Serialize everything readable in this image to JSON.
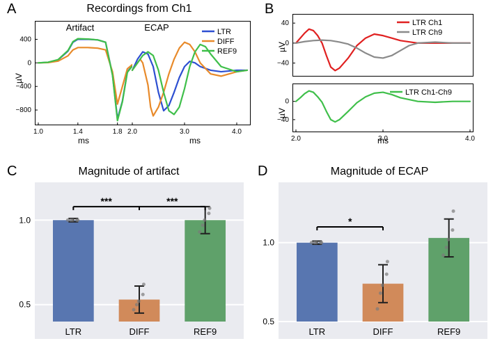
{
  "panelA": {
    "letter": "A",
    "title": "Recordings from Ch1",
    "artifact": {
      "subtitle": "Artifact",
      "y_label": "µV",
      "x_label": "ms",
      "xlim": [
        1.0,
        1.95
      ],
      "ylim": [
        -1000,
        500
      ],
      "ytick_positions": [
        -800,
        -400,
        0,
        400
      ],
      "ytick_labels": [
        "−800",
        "−400",
        "0",
        "400"
      ],
      "xtick_positions": [
        1.0,
        1.4,
        1.8
      ],
      "xtick_labels": [
        "1.0",
        "1.4",
        "1.8"
      ],
      "series": {
        "LTR": {
          "color": "#2d4fd1",
          "x": [
            1.0,
            1.1,
            1.2,
            1.3,
            1.35,
            1.4,
            1.5,
            1.6,
            1.68,
            1.75,
            1.8,
            1.85,
            1.9,
            1.95
          ],
          "y": [
            0,
            10,
            50,
            200,
            350,
            400,
            400,
            390,
            350,
            -200,
            -950,
            -650,
            -150,
            -50
          ]
        },
        "DIFF": {
          "color": "#e88a2a",
          "x": [
            1.0,
            1.1,
            1.2,
            1.3,
            1.35,
            1.4,
            1.5,
            1.6,
            1.68,
            1.75,
            1.8,
            1.85,
            1.9,
            1.95
          ],
          "y": [
            0,
            5,
            30,
            120,
            220,
            260,
            260,
            250,
            220,
            -150,
            -700,
            -400,
            -100,
            -30
          ]
        },
        "REF9": {
          "color": "#3fbf4a",
          "x": [
            1.0,
            1.1,
            1.2,
            1.3,
            1.35,
            1.4,
            1.5,
            1.6,
            1.68,
            1.75,
            1.8,
            1.85,
            1.9,
            1.95
          ],
          "y": [
            0,
            10,
            55,
            210,
            360,
            410,
            405,
            390,
            350,
            -210,
            -980,
            -660,
            -160,
            -55
          ]
        }
      }
    },
    "ecap": {
      "subtitle": "ECAP",
      "x_label": "ms",
      "xlim": [
        2.0,
        4.2
      ],
      "ylim": [
        -70,
        50
      ],
      "xtick_positions": [
        2.0,
        3.0,
        4.0
      ],
      "xtick_labels": [
        "2.0",
        "3.0",
        "4.0"
      ],
      "legend": [
        {
          "label": "LTR",
          "color": "#2d4fd1"
        },
        {
          "label": "DIFF",
          "color": "#e88a2a"
        },
        {
          "label": "REF9",
          "color": "#3fbf4a"
        }
      ],
      "series": {
        "LTR": {
          "color": "#2d4fd1",
          "x": [
            2.0,
            2.1,
            2.2,
            2.3,
            2.4,
            2.5,
            2.6,
            2.7,
            2.8,
            2.9,
            3.0,
            3.1,
            3.2,
            3.3,
            3.5,
            3.7,
            4.0,
            4.2
          ],
          "y": [
            0,
            15,
            25,
            22,
            5,
            -30,
            -55,
            -48,
            -30,
            -10,
            5,
            12,
            10,
            5,
            0,
            -2,
            0,
            0
          ]
        },
        "DIFF": {
          "color": "#e88a2a",
          "x": [
            2.0,
            2.1,
            2.15,
            2.2,
            2.3,
            2.35,
            2.4,
            2.5,
            2.6,
            2.7,
            2.8,
            2.9,
            3.0,
            3.1,
            3.2,
            3.3,
            3.5,
            3.7,
            4.0,
            4.2
          ],
          "y": [
            0,
            10,
            15,
            10,
            -20,
            -50,
            -62,
            -50,
            -30,
            -5,
            15,
            30,
            38,
            35,
            25,
            10,
            -5,
            -8,
            -2,
            0
          ]
        },
        "REF9": {
          "color": "#3fbf4a",
          "x": [
            2.0,
            2.1,
            2.2,
            2.3,
            2.4,
            2.5,
            2.6,
            2.7,
            2.8,
            2.9,
            3.0,
            3.1,
            3.2,
            3.3,
            3.4,
            3.5,
            3.7,
            4.0,
            4.2
          ],
          "y": [
            0,
            10,
            20,
            25,
            20,
            0,
            -30,
            -55,
            -60,
            -50,
            -25,
            5,
            25,
            35,
            32,
            22,
            5,
            -2,
            0
          ]
        }
      }
    }
  },
  "panelB": {
    "letter": "B",
    "top": {
      "y_label": "µV",
      "x_label": "",
      "xlim": [
        2.0,
        4.0
      ],
      "ylim": [
        -60,
        50
      ],
      "ytick_positions": [
        -40,
        0,
        40
      ],
      "ytick_labels": [
        "−40",
        "0",
        "40"
      ],
      "legend": [
        {
          "label": "LTR Ch1",
          "color": "#e02020"
        },
        {
          "label": "LTR Ch9",
          "color": "#8a8a8a"
        }
      ],
      "series": {
        "Ch1": {
          "color": "#e02020",
          "x": [
            2.0,
            2.05,
            2.1,
            2.15,
            2.2,
            2.25,
            2.3,
            2.35,
            2.4,
            2.45,
            2.5,
            2.6,
            2.7,
            2.8,
            2.9,
            3.0,
            3.1,
            3.2,
            3.4,
            3.6,
            3.8,
            4.0
          ],
          "y": [
            0,
            10,
            20,
            28,
            25,
            15,
            0,
            -25,
            -48,
            -55,
            -50,
            -30,
            -5,
            10,
            18,
            15,
            10,
            5,
            0,
            0,
            0,
            0
          ]
        },
        "Ch9": {
          "color": "#8a8a8a",
          "x": [
            2.0,
            2.1,
            2.2,
            2.3,
            2.4,
            2.5,
            2.6,
            2.7,
            2.8,
            2.9,
            3.0,
            3.1,
            3.2,
            3.3,
            3.4,
            3.6,
            3.8,
            4.0
          ],
          "y": [
            0,
            3,
            5,
            6,
            5,
            2,
            -2,
            -10,
            -20,
            -28,
            -30,
            -25,
            -15,
            -5,
            0,
            2,
            0,
            0
          ]
        }
      }
    },
    "bottom": {
      "y_label": "µV",
      "x_label": "ms",
      "xlim": [
        2.0,
        4.0
      ],
      "ylim": [
        -60,
        30
      ],
      "ytick_positions": [
        -40,
        0
      ],
      "ytick_labels": [
        "−40",
        "0"
      ],
      "xtick_positions": [
        2.0,
        3.0,
        4.0
      ],
      "xtick_labels": [
        "2.0",
        "3.0",
        "4.0"
      ],
      "legend": [
        {
          "label": "LTR Ch1-Ch9",
          "color": "#3fbf4a"
        }
      ],
      "series": {
        "diff": {
          "color": "#3fbf4a",
          "x": [
            2.0,
            2.05,
            2.1,
            2.15,
            2.2,
            2.25,
            2.3,
            2.35,
            2.4,
            2.45,
            2.5,
            2.6,
            2.7,
            2.8,
            2.9,
            3.0,
            3.1,
            3.2,
            3.4,
            3.6,
            3.8,
            4.0
          ],
          "y": [
            0,
            8,
            17,
            23,
            20,
            10,
            -2,
            -22,
            -40,
            -45,
            -40,
            -22,
            -3,
            10,
            18,
            20,
            15,
            8,
            0,
            -2,
            0,
            0
          ]
        }
      }
    }
  },
  "panelC": {
    "letter": "C",
    "title": "Magnitude of artifact",
    "ylim": [
      0.4,
      1.1
    ],
    "ytick_positions": [
      0.5,
      1.0
    ],
    "ytick_labels": [
      "0.5",
      "1.0"
    ],
    "categories": [
      "LTR",
      "DIFF",
      "REF9"
    ],
    "bars": [
      {
        "label": "LTR",
        "value": 1.0,
        "err": 0.01,
        "color": "#5876b0",
        "points": [
          1.0,
          1.0,
          1.0,
          1.0,
          1.0
        ]
      },
      {
        "label": "DIFF",
        "value": 0.53,
        "err": 0.08,
        "color": "#d18a5a",
        "points": [
          0.47,
          0.5,
          0.52,
          0.56,
          0.62
        ]
      },
      {
        "label": "REF9",
        "value": 1.0,
        "err": 0.08,
        "color": "#5fa16a",
        "points": [
          0.93,
          0.97,
          1.0,
          1.04,
          1.07
        ]
      }
    ],
    "sig": [
      {
        "from": 0,
        "to": 1,
        "label": "***",
        "y": 1.08
      },
      {
        "from": 1,
        "to": 2,
        "label": "***",
        "y": 1.08
      }
    ]
  },
  "panelD": {
    "letter": "D",
    "title": "Magnitude of ECAP",
    "ylim": [
      0.5,
      1.25
    ],
    "ytick_positions": [
      0.5,
      1.0
    ],
    "ytick_labels": [
      "0.5",
      "1.0"
    ],
    "categories": [
      "LTR",
      "DIFF",
      "REF9"
    ],
    "bars": [
      {
        "label": "LTR",
        "value": 1.0,
        "err": 0.01,
        "color": "#5876b0",
        "points": [
          1.0,
          1.0,
          1.0,
          1.0,
          1.0
        ]
      },
      {
        "label": "DIFF",
        "value": 0.74,
        "err": 0.12,
        "color": "#d18a5a",
        "points": [
          0.58,
          0.68,
          0.73,
          0.8,
          0.88
        ]
      },
      {
        "label": "REF9",
        "value": 1.03,
        "err": 0.12,
        "color": "#5fa16a",
        "points": [
          0.92,
          0.97,
          1.02,
          1.08,
          1.2
        ]
      }
    ],
    "sig": [
      {
        "from": 0,
        "to": 1,
        "label": "*",
        "y": 1.1
      }
    ]
  },
  "style": {
    "bar_width": 0.62,
    "title_fontsize": 16,
    "label_fontsize": 12,
    "tick_fontsize": 10,
    "line_width": 2.2,
    "sig_line_color": "#000000",
    "err_color": "#202020",
    "point_color": "#7a7a7a",
    "grid_bg": "#eaebf0",
    "grid_line": "#ffffff"
  }
}
